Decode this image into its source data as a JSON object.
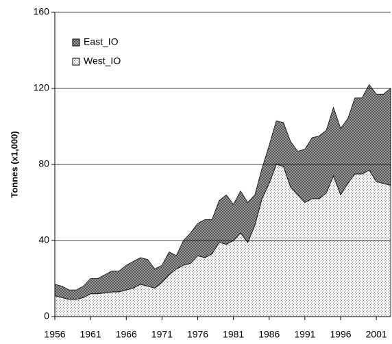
{
  "chart_data": {
    "type": "stacked_area",
    "y_label": "Tonnes (x1,000)",
    "x": [
      1956,
      1957,
      1958,
      1959,
      1960,
      1961,
      1962,
      1963,
      1964,
      1965,
      1966,
      1967,
      1968,
      1969,
      1970,
      1971,
      1972,
      1973,
      1974,
      1975,
      1976,
      1977,
      1978,
      1979,
      1980,
      1981,
      1982,
      1983,
      1984,
      1985,
      1986,
      1987,
      1988,
      1989,
      1990,
      1991,
      1992,
      1993,
      1994,
      1995,
      1996,
      1997,
      1998,
      1999,
      2000,
      2001,
      2002,
      2003
    ],
    "series": [
      {
        "name": "West_IO",
        "color": "#e8e8e8",
        "values": [
          11,
          10,
          9,
          9,
          10,
          12,
          12,
          12.5,
          13,
          13,
          14,
          15,
          17,
          16,
          15,
          18,
          22,
          25,
          27,
          28,
          32,
          31,
          33,
          39,
          38,
          40,
          44,
          39,
          48,
          62,
          70,
          80,
          79,
          68,
          64,
          60,
          62,
          62,
          65,
          74,
          64,
          70,
          75,
          75,
          77,
          71,
          70,
          69
        ]
      },
      {
        "name": "East_IO",
        "color": "#808080",
        "values": [
          6,
          6,
          5,
          5,
          6,
          8,
          8,
          9.5,
          11,
          11,
          13,
          14,
          14,
          14,
          10,
          9,
          12,
          7,
          13,
          16,
          17,
          20,
          18,
          22,
          26,
          19,
          22,
          21,
          16,
          16,
          20,
          23,
          23,
          24,
          23,
          28,
          32,
          33,
          33,
          36,
          35,
          34,
          40,
          40,
          45,
          46,
          47,
          51
        ]
      }
    ],
    "xlim": [
      1956,
      2003
    ],
    "xticks": [
      1956,
      1961,
      1966,
      1971,
      1976,
      1981,
      1986,
      1991,
      1996,
      2001
    ],
    "ylim": [
      0,
      160
    ],
    "yticks": [
      0,
      40,
      80,
      120,
      160
    ],
    "grid": true,
    "legend": "top-left"
  }
}
